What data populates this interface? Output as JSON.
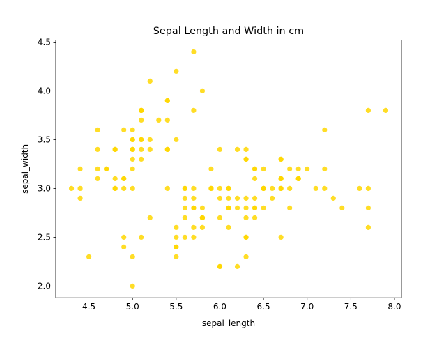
{
  "chart_data": {
    "type": "scatter",
    "title": "Sepal Length and Width in cm",
    "xlabel": "sepal_length",
    "ylabel": "sepal_width",
    "xlim": [
      4.12,
      8.08
    ],
    "ylim": [
      1.88,
      4.52
    ],
    "xticks": [
      "4.5",
      "5.0",
      "5.5",
      "6.0",
      "6.5",
      "7.0",
      "7.5",
      "8.0"
    ],
    "yticks": [
      "2.0",
      "2.5",
      "3.0",
      "3.5",
      "4.0",
      "4.5"
    ],
    "grid": false,
    "legend": "none",
    "marker_color": "#ffd700",
    "points": [
      [
        5.1,
        3.5
      ],
      [
        4.9,
        3.0
      ],
      [
        4.7,
        3.2
      ],
      [
        4.6,
        3.1
      ],
      [
        5.0,
        3.6
      ],
      [
        5.4,
        3.9
      ],
      [
        4.6,
        3.4
      ],
      [
        5.0,
        3.4
      ],
      [
        4.4,
        2.9
      ],
      [
        4.9,
        3.1
      ],
      [
        5.4,
        3.7
      ],
      [
        4.8,
        3.4
      ],
      [
        4.8,
        3.0
      ],
      [
        4.3,
        3.0
      ],
      [
        5.8,
        4.0
      ],
      [
        5.7,
        4.4
      ],
      [
        5.4,
        3.9
      ],
      [
        5.1,
        3.5
      ],
      [
        5.7,
        3.8
      ],
      [
        5.1,
        3.8
      ],
      [
        5.4,
        3.4
      ],
      [
        5.1,
        3.7
      ],
      [
        4.6,
        3.6
      ],
      [
        5.1,
        3.3
      ],
      [
        4.8,
        3.4
      ],
      [
        5.0,
        3.0
      ],
      [
        5.0,
        3.4
      ],
      [
        5.2,
        3.5
      ],
      [
        5.2,
        3.4
      ],
      [
        4.7,
        3.2
      ],
      [
        4.8,
        3.1
      ],
      [
        5.4,
        3.4
      ],
      [
        5.2,
        4.1
      ],
      [
        5.5,
        4.2
      ],
      [
        4.9,
        3.1
      ],
      [
        5.0,
        3.2
      ],
      [
        5.5,
        3.5
      ],
      [
        4.9,
        3.6
      ],
      [
        4.4,
        3.0
      ],
      [
        5.1,
        3.4
      ],
      [
        5.0,
        3.5
      ],
      [
        4.5,
        2.3
      ],
      [
        4.4,
        3.2
      ],
      [
        5.0,
        3.5
      ],
      [
        5.1,
        3.8
      ],
      [
        4.8,
        3.0
      ],
      [
        5.1,
        3.8
      ],
      [
        4.6,
        3.2
      ],
      [
        5.3,
        3.7
      ],
      [
        5.0,
        3.3
      ],
      [
        7.0,
        3.2
      ],
      [
        6.4,
        3.2
      ],
      [
        6.9,
        3.1
      ],
      [
        5.5,
        2.3
      ],
      [
        6.5,
        2.8
      ],
      [
        5.7,
        2.8
      ],
      [
        6.3,
        3.3
      ],
      [
        4.9,
        2.4
      ],
      [
        6.6,
        2.9
      ],
      [
        5.2,
        2.7
      ],
      [
        5.0,
        2.0
      ],
      [
        5.9,
        3.0
      ],
      [
        6.0,
        2.2
      ],
      [
        6.1,
        2.9
      ],
      [
        5.6,
        2.9
      ],
      [
        6.7,
        3.1
      ],
      [
        5.6,
        3.0
      ],
      [
        5.8,
        2.7
      ],
      [
        6.2,
        2.2
      ],
      [
        5.6,
        2.5
      ],
      [
        5.9,
        3.2
      ],
      [
        6.1,
        2.8
      ],
      [
        6.3,
        2.5
      ],
      [
        6.1,
        2.8
      ],
      [
        6.4,
        2.9
      ],
      [
        6.6,
        3.0
      ],
      [
        6.8,
        2.8
      ],
      [
        6.7,
        3.0
      ],
      [
        6.0,
        2.9
      ],
      [
        5.7,
        2.6
      ],
      [
        5.5,
        2.4
      ],
      [
        5.5,
        2.4
      ],
      [
        5.8,
        2.7
      ],
      [
        6.0,
        2.7
      ],
      [
        5.4,
        3.0
      ],
      [
        6.0,
        3.4
      ],
      [
        6.7,
        3.1
      ],
      [
        6.3,
        2.3
      ],
      [
        5.6,
        3.0
      ],
      [
        5.5,
        2.5
      ],
      [
        5.5,
        2.6
      ],
      [
        6.1,
        3.0
      ],
      [
        5.8,
        2.6
      ],
      [
        5.0,
        2.3
      ],
      [
        5.6,
        2.7
      ],
      [
        5.7,
        3.0
      ],
      [
        5.7,
        2.9
      ],
      [
        6.2,
        2.9
      ],
      [
        5.1,
        2.5
      ],
      [
        5.7,
        2.8
      ],
      [
        6.3,
        3.3
      ],
      [
        5.8,
        2.7
      ],
      [
        7.1,
        3.0
      ],
      [
        6.3,
        2.9
      ],
      [
        6.5,
        3.0
      ],
      [
        7.6,
        3.0
      ],
      [
        4.9,
        2.5
      ],
      [
        7.3,
        2.9
      ],
      [
        6.7,
        2.5
      ],
      [
        7.2,
        3.6
      ],
      [
        6.5,
        3.2
      ],
      [
        6.4,
        2.7
      ],
      [
        6.8,
        3.0
      ],
      [
        5.7,
        2.5
      ],
      [
        5.8,
        2.8
      ],
      [
        6.4,
        3.2
      ],
      [
        6.5,
        3.0
      ],
      [
        7.7,
        3.8
      ],
      [
        7.7,
        2.6
      ],
      [
        6.0,
        2.2
      ],
      [
        6.9,
        3.2
      ],
      [
        5.6,
        2.8
      ],
      [
        7.7,
        2.8
      ],
      [
        6.3,
        2.7
      ],
      [
        6.7,
        3.3
      ],
      [
        7.2,
        3.2
      ],
      [
        6.2,
        2.8
      ],
      [
        6.1,
        3.0
      ],
      [
        6.4,
        2.8
      ],
      [
        7.2,
        3.0
      ],
      [
        7.4,
        2.8
      ],
      [
        7.9,
        3.8
      ],
      [
        6.4,
        2.8
      ],
      [
        6.3,
        2.8
      ],
      [
        6.1,
        2.6
      ],
      [
        7.7,
        3.0
      ],
      [
        6.3,
        3.4
      ],
      [
        6.4,
        3.1
      ],
      [
        6.0,
        3.0
      ],
      [
        6.9,
        3.1
      ],
      [
        6.7,
        3.1
      ],
      [
        6.9,
        3.1
      ],
      [
        5.8,
        2.7
      ],
      [
        6.8,
        3.2
      ],
      [
        6.7,
        3.3
      ],
      [
        6.7,
        3.0
      ],
      [
        6.3,
        2.5
      ],
      [
        6.5,
        3.0
      ],
      [
        6.2,
        3.4
      ],
      [
        5.9,
        3.0
      ]
    ]
  }
}
